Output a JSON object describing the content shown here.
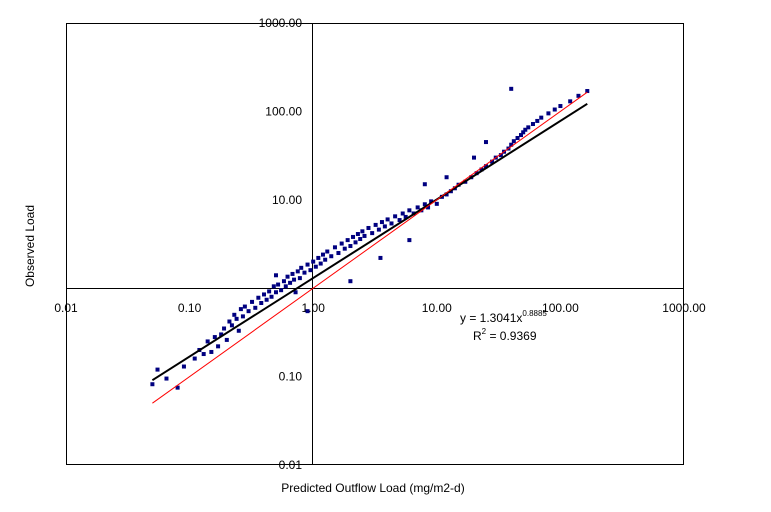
{
  "chart_data": {
    "type": "scatter",
    "title": "",
    "xlabel": "Predicted Outflow Load  (mg/m2-d)",
    "ylabel": "Observed Load",
    "xscale": "log",
    "yscale": "log",
    "xlim": [
      0.01,
      1000
    ],
    "ylim": [
      0.01,
      1000
    ],
    "x_tick_labels": [
      "0.01",
      "0.10",
      "1.00",
      "10.00",
      "100.00",
      "1000.00"
    ],
    "y_tick_labels": [
      "0.01",
      "0.10",
      "1.00",
      "10.00",
      "100.00",
      "1000.00"
    ],
    "grid": false,
    "legend": "none",
    "annotation": {
      "equation_prefix": "y = 1.3041x",
      "equation_exponent": "0.8885",
      "r2_prefix": "R",
      "r2_exponent": "2",
      "r2_value": " = 0.9369"
    },
    "points_note": "approximately 1400 observations; representative sample listed",
    "series": [
      {
        "type": "scatter",
        "color": "#000080",
        "points": [
          [
            0.05,
            0.082
          ],
          [
            0.055,
            0.12
          ],
          [
            0.065,
            0.095
          ],
          [
            0.08,
            0.075
          ],
          [
            0.09,
            0.13
          ],
          [
            0.11,
            0.16
          ],
          [
            0.12,
            0.2
          ],
          [
            0.13,
            0.18
          ],
          [
            0.14,
            0.25
          ],
          [
            0.15,
            0.19
          ],
          [
            0.16,
            0.28
          ],
          [
            0.17,
            0.22
          ],
          [
            0.18,
            0.3
          ],
          [
            0.19,
            0.35
          ],
          [
            0.2,
            0.26
          ],
          [
            0.21,
            0.42
          ],
          [
            0.22,
            0.38
          ],
          [
            0.23,
            0.5
          ],
          [
            0.24,
            0.45
          ],
          [
            0.25,
            0.33
          ],
          [
            0.26,
            0.58
          ],
          [
            0.27,
            0.48
          ],
          [
            0.28,
            0.62
          ],
          [
            0.3,
            0.55
          ],
          [
            0.32,
            0.7
          ],
          [
            0.34,
            0.6
          ],
          [
            0.36,
            0.78
          ],
          [
            0.38,
            0.68
          ],
          [
            0.4,
            0.85
          ],
          [
            0.42,
            0.74
          ],
          [
            0.44,
            0.92
          ],
          [
            0.46,
            0.8
          ],
          [
            0.48,
            1.05
          ],
          [
            0.5,
            0.9
          ],
          [
            0.52,
            1.1
          ],
          [
            0.55,
            0.95
          ],
          [
            0.58,
            1.2
          ],
          [
            0.6,
            1.05
          ],
          [
            0.62,
            1.35
          ],
          [
            0.65,
            1.15
          ],
          [
            0.68,
            1.45
          ],
          [
            0.7,
            1.25
          ],
          [
            0.72,
            0.9
          ],
          [
            0.75,
            1.55
          ],
          [
            0.78,
            1.3
          ],
          [
            0.8,
            1.7
          ],
          [
            0.85,
            1.5
          ],
          [
            0.9,
            1.85
          ],
          [
            0.95,
            1.6
          ],
          [
            1.0,
            2.0
          ],
          [
            1.05,
            1.75
          ],
          [
            1.1,
            2.2
          ],
          [
            1.15,
            1.9
          ],
          [
            1.2,
            2.4
          ],
          [
            1.25,
            2.1
          ],
          [
            1.3,
            2.6
          ],
          [
            1.4,
            2.3
          ],
          [
            1.5,
            2.9
          ],
          [
            1.6,
            2.5
          ],
          [
            1.7,
            3.2
          ],
          [
            1.8,
            2.8
          ],
          [
            1.9,
            3.5
          ],
          [
            2.0,
            3.0
          ],
          [
            2.1,
            3.8
          ],
          [
            2.2,
            3.3
          ],
          [
            2.3,
            4.1
          ],
          [
            2.4,
            3.6
          ],
          [
            2.5,
            4.4
          ],
          [
            2.6,
            3.9
          ],
          [
            2.8,
            4.8
          ],
          [
            3.0,
            4.2
          ],
          [
            3.2,
            5.2
          ],
          [
            3.4,
            4.6
          ],
          [
            3.6,
            5.6
          ],
          [
            3.8,
            5.0
          ],
          [
            4.0,
            6.0
          ],
          [
            4.3,
            5.4
          ],
          [
            4.6,
            6.5
          ],
          [
            5.0,
            5.9
          ],
          [
            5.3,
            7.0
          ],
          [
            5.6,
            6.4
          ],
          [
            6.0,
            7.6
          ],
          [
            6.5,
            7.0
          ],
          [
            7.0,
            8.2
          ],
          [
            7.5,
            7.6
          ],
          [
            8.0,
            8.9
          ],
          [
            8.5,
            8.2
          ],
          [
            9.0,
            9.6
          ],
          [
            10.0,
            9.0
          ],
          [
            11.0,
            10.8
          ],
          [
            12.0,
            11.5
          ],
          [
            13.0,
            12.5
          ],
          [
            14.0,
            13.5
          ],
          [
            15.0,
            14.8
          ],
          [
            17.0,
            16.0
          ],
          [
            19.0,
            18.0
          ],
          [
            21.0,
            20.0
          ],
          [
            23.0,
            22.0
          ],
          [
            25.0,
            24.0
          ],
          [
            28.0,
            27.0
          ],
          [
            30.0,
            30.0
          ],
          [
            33.0,
            32.0
          ],
          [
            35.0,
            35.0
          ],
          [
            38.0,
            38.0
          ],
          [
            40.0,
            42.0
          ],
          [
            42.0,
            46.0
          ],
          [
            45.0,
            50.0
          ],
          [
            48.0,
            54.0
          ],
          [
            50.0,
            58.0
          ],
          [
            52.0,
            62.0
          ],
          [
            55.0,
            66.0
          ],
          [
            60.0,
            72.0
          ],
          [
            65.0,
            78.0
          ],
          [
            70.0,
            85.0
          ],
          [
            80.0,
            95.0
          ],
          [
            90.0,
            105.0
          ],
          [
            100.0,
            115.0
          ],
          [
            120.0,
            130.0
          ],
          [
            140.0,
            150.0
          ],
          [
            165.0,
            170.0
          ],
          [
            40.0,
            180.0
          ],
          [
            0.9,
            0.55
          ],
          [
            3.5,
            2.2
          ],
          [
            6.0,
            3.5
          ],
          [
            12.0,
            18.0
          ],
          [
            20.0,
            30.0
          ],
          [
            0.5,
            1.4
          ],
          [
            2.0,
            1.2
          ],
          [
            8.0,
            15.0
          ],
          [
            25.0,
            45.0
          ]
        ]
      }
    ],
    "fit_lines": [
      {
        "type": "power_regression",
        "color": "#000000",
        "a": 1.3041,
        "b": 0.8885,
        "x_range": [
          0.05,
          165
        ]
      },
      {
        "type": "one_to_one",
        "color": "#ff0000",
        "x_range": [
          0.05,
          165
        ]
      }
    ]
  }
}
